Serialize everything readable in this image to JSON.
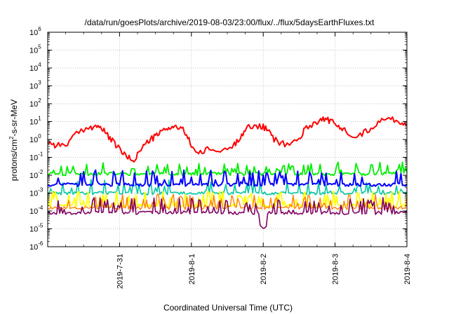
{
  "chart_data": {
    "type": "line",
    "title": "/data/run/goesPlots/archive/2019-08-03/23:00/flux/../flux/5daysEarthFluxes.txt",
    "xlabel": "Coordinated Universal Time (UTC)",
    "ylabel_parts": [
      "protons/cm",
      "2",
      "-s-sr-MeV"
    ],
    "yscale": "log",
    "ylim_exponents": [
      -6,
      6
    ],
    "xlim_days": [
      0,
      5
    ],
    "x_ticks": [
      {
        "day": 1,
        "label": "2019-7-31"
      },
      {
        "day": 2,
        "label": "2019-8-1"
      },
      {
        "day": 3,
        "label": "2019-8-2"
      },
      {
        "day": 4,
        "label": "2019-8-3"
      },
      {
        "day": 5,
        "label": "2019-8-4"
      }
    ],
    "grid": true,
    "series": [
      {
        "color": "#ff0000",
        "width": 2,
        "style": "smooth",
        "points": [
          [
            0.0,
            0.8
          ],
          [
            0.1,
            0.5
          ],
          [
            0.25,
            0.5
          ],
          [
            0.4,
            2
          ],
          [
            0.6,
            5
          ],
          [
            0.7,
            6
          ],
          [
            0.8,
            2.5
          ],
          [
            0.9,
            0.8
          ],
          [
            1.0,
            0.3
          ],
          [
            1.1,
            0.1
          ],
          [
            1.2,
            0.07
          ],
          [
            1.3,
            0.3
          ],
          [
            1.4,
            0.8
          ],
          [
            1.5,
            1.5
          ],
          [
            1.6,
            3
          ],
          [
            1.7,
            5
          ],
          [
            1.8,
            5
          ],
          [
            1.9,
            3
          ],
          [
            2.0,
            0.5
          ],
          [
            2.1,
            0.15
          ],
          [
            2.25,
            0.3
          ],
          [
            2.4,
            0.2
          ],
          [
            2.6,
            0.5
          ],
          [
            2.7,
            2
          ],
          [
            2.8,
            5
          ],
          [
            2.95,
            6
          ],
          [
            3.05,
            4
          ],
          [
            3.15,
            1
          ],
          [
            3.3,
            0.5
          ],
          [
            3.5,
            1
          ],
          [
            3.6,
            5
          ],
          [
            3.75,
            10
          ],
          [
            3.85,
            15
          ],
          [
            3.95,
            10
          ],
          [
            4.05,
            5
          ],
          [
            4.15,
            3
          ],
          [
            4.3,
            1.5
          ],
          [
            4.45,
            3
          ],
          [
            4.6,
            10
          ],
          [
            4.75,
            15
          ],
          [
            4.9,
            10
          ],
          [
            5.0,
            6
          ]
        ]
      },
      {
        "color": "#00ee00",
        "width": 1.8,
        "style": "spiky",
        "base": 0.012,
        "amp": 2.2,
        "seed": 11
      },
      {
        "color": "#00c8a0",
        "width": 1.6,
        "style": "spiky",
        "base": 0.001,
        "amp": 3.0,
        "seed": 23
      },
      {
        "color": "#0000ff",
        "width": 2,
        "style": "spiky",
        "base": 0.003,
        "amp": 3.5,
        "seed": 37
      },
      {
        "color": "#ffff00",
        "width": 1.8,
        "style": "spiky",
        "base": 0.0002,
        "amp": 3.5,
        "seed": 41
      },
      {
        "color": "#ff8000",
        "width": 1.4,
        "style": "spiky",
        "base": 0.00015,
        "amp": 3.2,
        "seed": 53
      },
      {
        "color": "#800060",
        "width": 1.6,
        "style": "spiky",
        "base": 8e-05,
        "amp": 3.8,
        "seed": 67,
        "dip": [
          3.0,
          7e-06
        ]
      }
    ]
  }
}
